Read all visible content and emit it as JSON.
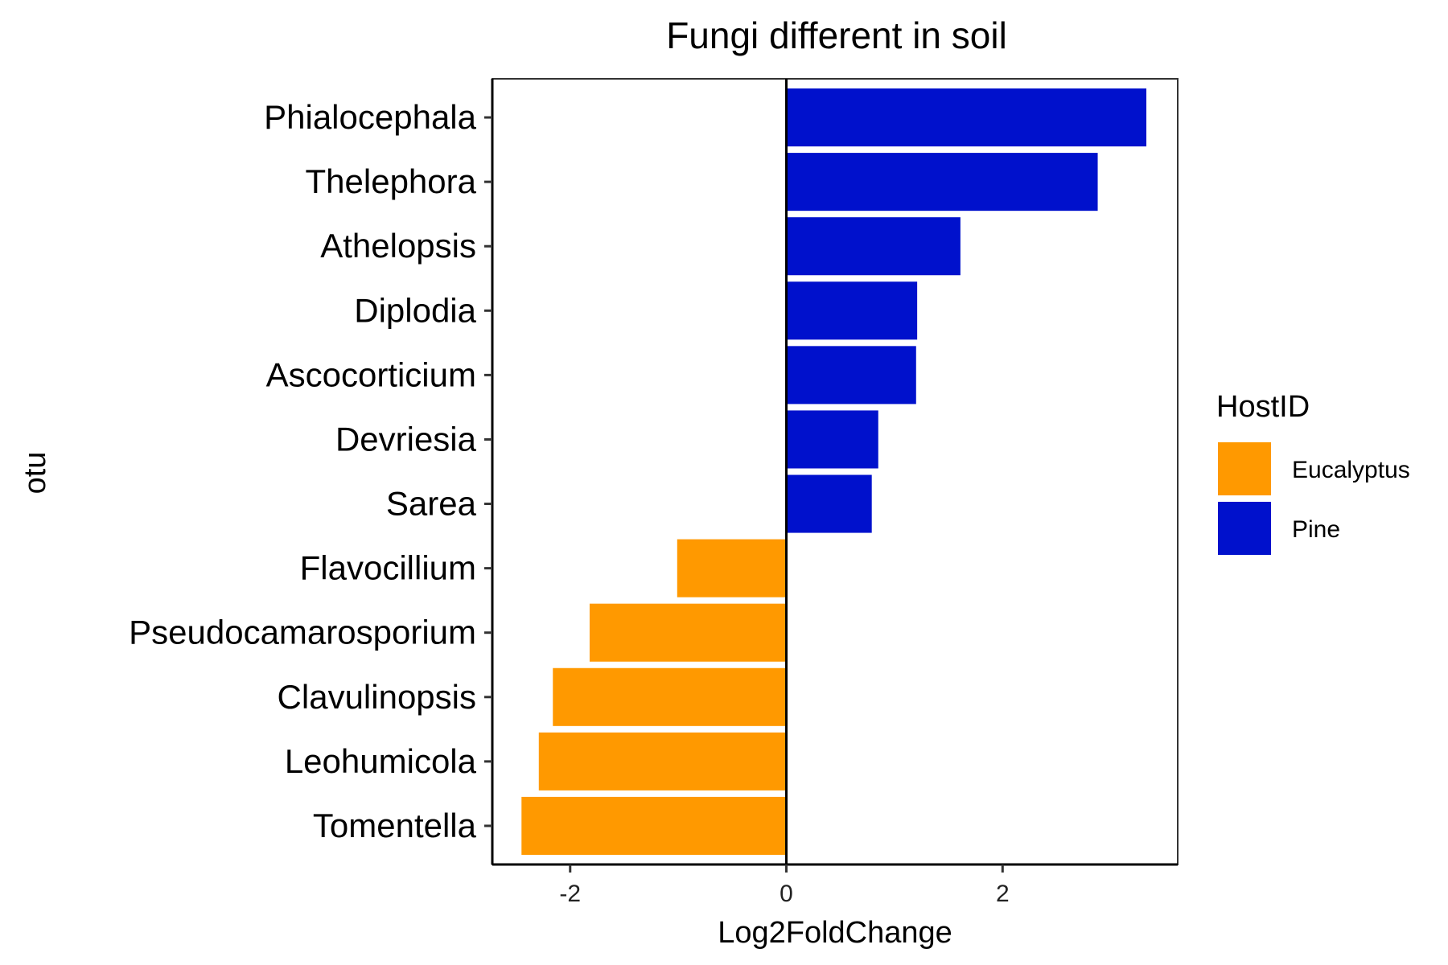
{
  "chart_data": {
    "type": "bar",
    "orientation": "horizontal",
    "title": "Fungi different in soil",
    "xlabel": "Log2FoldChange",
    "ylabel": "otu",
    "xlim": [
      -2.72,
      3.62
    ],
    "x_ticks": [
      -2,
      0,
      2
    ],
    "x_tick_labels": [
      "-2",
      "0",
      "2"
    ],
    "grid": false,
    "zero_line": true,
    "legend": {
      "title": "HostID",
      "placement": "right",
      "entries": [
        {
          "label": "Eucalyptus",
          "color": "#FF9900"
        },
        {
          "label": "Pine",
          "color": "#0011CC"
        }
      ]
    },
    "categories": [
      "Phialocephala",
      "Thelephora",
      "Athelopsis",
      "Diplodia",
      "Ascocorticium",
      "Devriesia",
      "Sarea",
      "Flavocillium",
      "Pseudocamarosporium",
      "Clavulinopsis",
      "Leohumicola",
      "Tomentella"
    ],
    "values": [
      3.33,
      2.88,
      1.61,
      1.21,
      1.2,
      0.85,
      0.79,
      -1.01,
      -1.82,
      -2.16,
      -2.29,
      -2.45
    ],
    "groups": [
      "Pine",
      "Pine",
      "Pine",
      "Pine",
      "Pine",
      "Pine",
      "Pine",
      "Eucalyptus",
      "Eucalyptus",
      "Eucalyptus",
      "Eucalyptus",
      "Eucalyptus"
    ]
  }
}
